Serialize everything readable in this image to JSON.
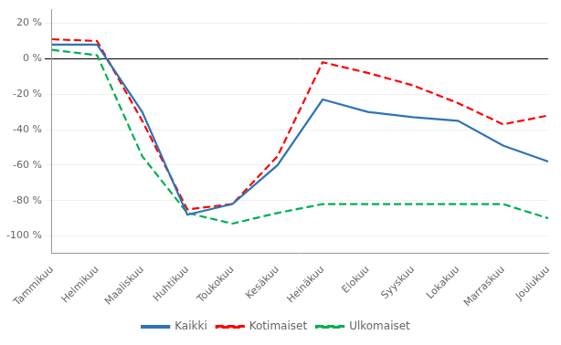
{
  "chart_data": {
    "type": "line",
    "categories": [
      "Tammikuu",
      "Helmikuu",
      "Maaliskuu",
      "Huhtikuu",
      "Toukokuu",
      "Kesäkuu",
      "Heinäkuu",
      "Elokuu",
      "Syyskuu",
      "Lokakuu",
      "Marraskuu",
      "Joulukuu"
    ],
    "series": [
      {
        "name": "Kaikki",
        "color": "#2E74B5",
        "line_style": "solid",
        "values": [
          8,
          8,
          -30,
          -88,
          -82,
          -60,
          -23,
          -30,
          -33,
          -35,
          -49,
          -58
        ]
      },
      {
        "name": "Kotimaiset",
        "color": "#FF0000",
        "line_style": "dashed",
        "values": [
          11,
          10,
          -35,
          -85,
          -82,
          -55,
          -2,
          -8,
          -15,
          -25,
          -37,
          -32
        ]
      },
      {
        "name": "Ulkomaiset",
        "color": "#00B050",
        "line_style": "dashed",
        "values": [
          5,
          2,
          -55,
          -87,
          -93,
          -87,
          -82,
          -82,
          -82,
          -82,
          -82,
          -90
        ]
      }
    ],
    "ylim": [
      -110,
      28
    ],
    "yticks": [
      {
        "value": -100,
        "label": "-100 %"
      },
      {
        "value": -80,
        "label": "-80 %"
      },
      {
        "value": -60,
        "label": "-60 %"
      },
      {
        "value": -40,
        "label": "-40 %"
      },
      {
        "value": -20,
        "label": "-20 %"
      },
      {
        "value": 0,
        "label": "0 %"
      },
      {
        "value": 20,
        "label": "20 %"
      }
    ],
    "grid": true,
    "legend": "bottom"
  }
}
